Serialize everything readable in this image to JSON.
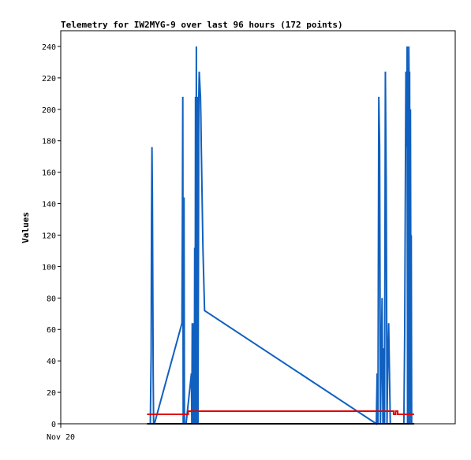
{
  "chart_data": {
    "type": "line",
    "title": "Telemetry for IW2MYG-9 over last 96 hours (172 points)",
    "xlabel": "",
    "ylabel": "Values",
    "x_tick_labels": [
      "Nov 20"
    ],
    "ylim": [
      0,
      250
    ],
    "y_ticks": [
      0,
      20,
      40,
      60,
      80,
      100,
      120,
      140,
      160,
      180,
      200,
      220,
      240
    ],
    "xlim": [
      0,
      96
    ],
    "grid": false,
    "legend": "none",
    "series": [
      {
        "color": "#1060c0",
        "style": "line",
        "x": [
          21.8,
          22.0,
          22.1,
          22.2,
          22.3,
          22.4,
          22.5,
          22.6,
          22.7,
          22.8,
          29.5,
          29.6,
          29.7,
          29.8,
          29.9,
          30.0,
          30.1,
          30.2,
          30.3,
          30.4,
          30.5,
          31.8,
          31.9,
          32.0,
          32.1,
          32.2,
          32.3,
          32.4,
          32.5,
          32.6,
          32.7,
          32.8,
          32.9,
          33.0,
          33.1,
          33.2,
          33.3,
          33.4,
          33.5,
          33.6,
          33.7,
          34.0,
          34.1,
          34.2,
          34.4,
          34.6,
          35.0,
          76.8,
          77.0,
          77.2,
          77.4,
          77.6,
          77.8,
          78.0,
          78.2,
          78.4,
          78.6,
          78.8,
          79.0,
          79.2,
          79.4,
          79.6,
          79.8,
          80.0,
          80.2,
          80.4,
          80.6,
          80.8,
          81.0,
          83.5,
          83.7,
          83.9,
          84.0,
          84.1,
          84.2,
          84.3,
          84.4,
          84.5,
          84.6,
          84.7,
          84.8,
          84.9,
          85.0,
          85.1,
          85.2,
          85.3,
          85.4,
          85.5,
          85.6,
          85.7,
          85.8,
          86.0
        ],
        "y": [
          0,
          45,
          132,
          176,
          146,
          88,
          30,
          0,
          0,
          0,
          64,
          128,
          208,
          0,
          72,
          144,
          0,
          0,
          0,
          0,
          0,
          32,
          0,
          64,
          0,
          48,
          0,
          64,
          0,
          112,
          0,
          208,
          0,
          240,
          0,
          0,
          208,
          0,
          96,
          208,
          224,
          208,
          196,
          176,
          144,
          112,
          72,
          0,
          32,
          0,
          208,
          176,
          0,
          40,
          80,
          0,
          48,
          0,
          224,
          152,
          0,
          40,
          64,
          32,
          0,
          0,
          0,
          0,
          0,
          0,
          56,
          168,
          224,
          176,
          192,
          240,
          0,
          208,
          0,
          240,
          208,
          224,
          0,
          200,
          88,
          120,
          0,
          0,
          0,
          0,
          0,
          0
        ]
      },
      {
        "color": "#e00000",
        "style": "step",
        "x": [
          21.0,
          30.0,
          30.5,
          31.0,
          32.0,
          81.0,
          81.5,
          82.0,
          86.0
        ],
        "y": [
          6,
          6,
          6,
          8,
          8,
          6,
          8,
          6,
          6
        ]
      },
      {
        "color": "#000000",
        "style": "line",
        "x": [
          21.0,
          86.0
        ],
        "y": [
          0,
          0
        ]
      }
    ]
  }
}
